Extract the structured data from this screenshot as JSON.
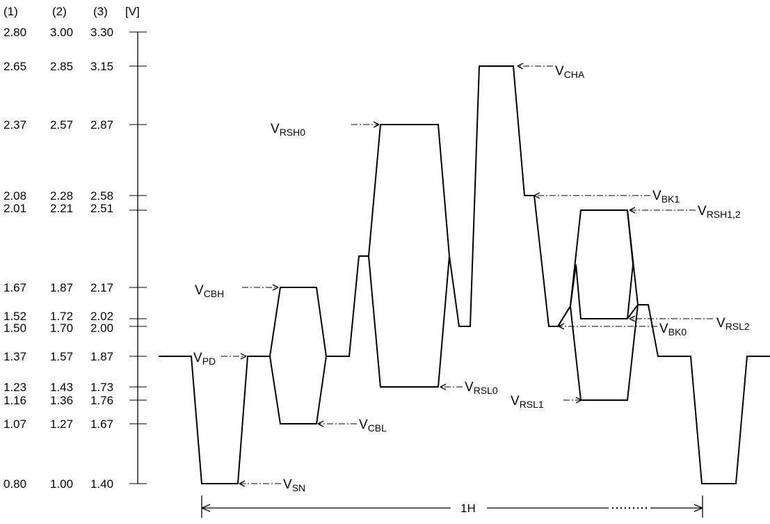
{
  "axis": {
    "headers": [
      "(1)",
      "(2)",
      "(3)",
      "[V]"
    ],
    "rows": [
      {
        "c1": "2.80",
        "c2": "3.00",
        "c3": "3.30"
      },
      {
        "c1": "2.65",
        "c2": "2.85",
        "c3": "3.15"
      },
      {
        "c1": "2.37",
        "c2": "2.57",
        "c3": "2.87"
      },
      {
        "c1": "2.08",
        "c2": "2.28",
        "c3": "2.58"
      },
      {
        "c1": "2.01",
        "c2": "2.21",
        "c3": "2.51"
      },
      {
        "c1": "1.67",
        "c2": "1.87",
        "c3": "2.17"
      },
      {
        "c1": "1.52",
        "c2": "1.72",
        "c3": "2.02"
      },
      {
        "c1": "1.50",
        "c2": "1.70",
        "c3": "2.00"
      },
      {
        "c1": "1.37",
        "c2": "1.57",
        "c3": "1.87"
      },
      {
        "c1": "1.23",
        "c2": "1.43",
        "c3": "1.73"
      },
      {
        "c1": "1.16",
        "c2": "1.36",
        "c3": "1.76"
      },
      {
        "c1": "1.07",
        "c2": "1.27",
        "c3": "1.67"
      },
      {
        "c1": "0.80",
        "c2": "1.00",
        "c3": "1.40"
      }
    ]
  },
  "labels": [
    {
      "main": "V",
      "sub": "CHA"
    },
    {
      "main": "V",
      "sub": "RSH0"
    },
    {
      "main": "V",
      "sub": "BK1"
    },
    {
      "main": "V",
      "sub": "RSH1,2"
    },
    {
      "main": "V",
      "sub": "CBH"
    },
    {
      "main": "V",
      "sub": "RSL2"
    },
    {
      "main": "V",
      "sub": "BK0"
    },
    {
      "main": "V",
      "sub": "PD"
    },
    {
      "main": "V",
      "sub": "RSL0"
    },
    {
      "main": "V",
      "sub": "RSL1"
    },
    {
      "main": "V",
      "sub": "CBL"
    },
    {
      "main": "V",
      "sub": "SN"
    }
  ],
  "period": {
    "label": "1H"
  }
}
